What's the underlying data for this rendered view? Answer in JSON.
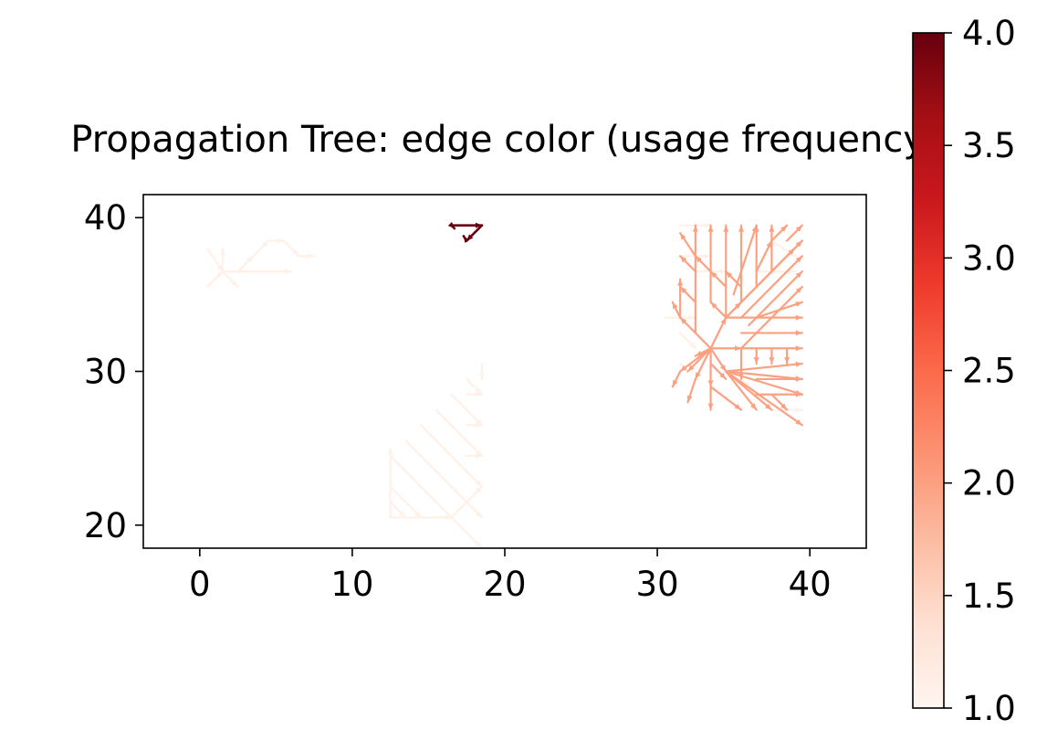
{
  "chart_data": {
    "type": "vector-field",
    "title": "Propagation Tree: edge color (usage frequency)",
    "xlabel": "",
    "ylabel": "",
    "xlim": [
      -3.7,
      43.7
    ],
    "ylim": [
      18.5,
      41.5
    ],
    "xticks": [
      0,
      10,
      20,
      30,
      40
    ],
    "yticks": [
      20,
      30,
      40
    ],
    "grid": false,
    "colorbar": {
      "colormap": "Reds",
      "range": [
        1.0,
        4.0
      ],
      "ticks": [
        "1.0",
        "1.5",
        "2.0",
        "2.5",
        "3.0",
        "3.5",
        "4.0"
      ],
      "stops": [
        "#fff5f0",
        "#fee0d2",
        "#fcbba1",
        "#fc9272",
        "#fb6a4a",
        "#ef3b2c",
        "#cb181d",
        "#a50f15",
        "#67000d"
      ]
    },
    "series": [
      {
        "frequency": 1,
        "color": "#fff0e8",
        "segments": [
          [
            0.5,
            38.0,
            1.5,
            36.5
          ],
          [
            0.5,
            35.5,
            1.5,
            36.5
          ],
          [
            1.5,
            36.5,
            2.5,
            35.5
          ],
          [
            1.5,
            36.5,
            3.0,
            36.5
          ],
          [
            3.0,
            36.5,
            6.0,
            36.5
          ],
          [
            2.5,
            36.5,
            3.5,
            37.5
          ],
          [
            3.5,
            37.5,
            4.5,
            38.5
          ],
          [
            4.5,
            38.5,
            5.5,
            38.5
          ],
          [
            5.5,
            38.5,
            6.5,
            37.5
          ],
          [
            6.5,
            37.5,
            7.5,
            37.5
          ],
          [
            1.5,
            36.5,
            1.5,
            38.0
          ],
          [
            12.5,
            20.5,
            16.5,
            20.5
          ],
          [
            12.5,
            20.5,
            12.5,
            25.0
          ],
          [
            16.5,
            20.5,
            18.5,
            22.5
          ],
          [
            12.5,
            22.5,
            14.5,
            20.5
          ],
          [
            12.5,
            24.5,
            18.5,
            18.5
          ],
          [
            13.5,
            25.5,
            18.5,
            20.5
          ],
          [
            14.5,
            26.5,
            18.5,
            22.5
          ],
          [
            15.5,
            27.5,
            18.5,
            24.5
          ],
          [
            16.5,
            28.5,
            18.5,
            26.5
          ],
          [
            17.5,
            29.5,
            18.5,
            28.5
          ],
          [
            12.5,
            21.5,
            13.5,
            20.5
          ],
          [
            17.5,
            26.5,
            18.5,
            26.5
          ],
          [
            17.5,
            24.5,
            18.5,
            24.5
          ],
          [
            17.5,
            28.5,
            18.5,
            28.5
          ],
          [
            18.5,
            30.5,
            18.5,
            29.5
          ],
          [
            31.5,
            39.5,
            33.5,
            39.5
          ],
          [
            31.5,
            37.5,
            33.5,
            37.5
          ],
          [
            32.5,
            36.5,
            34.5,
            36.5
          ],
          [
            30.5,
            33.5,
            32.5,
            33.5
          ],
          [
            36.5,
            36.5,
            39.0,
            36.5
          ],
          [
            37.5,
            38.5,
            39.0,
            37.5
          ],
          [
            36.5,
            28.5,
            37.5,
            27.5
          ],
          [
            37.5,
            27.5,
            39.5,
            27.5
          ],
          [
            35.5,
            29.5,
            36.5,
            28.5
          ],
          [
            31.5,
            32.5,
            32.5,
            31.5
          ],
          [
            31.5,
            30.5,
            32.0,
            30.0
          ]
        ]
      },
      {
        "frequency": 2,
        "color": "#fca082",
        "segments": [
          [
            33.5,
            31.5,
            31.5,
            33.5
          ],
          [
            33.5,
            31.5,
            32.5,
            31.0
          ],
          [
            33.5,
            31.5,
            32.0,
            30.0
          ],
          [
            33.5,
            31.5,
            32.5,
            29.5
          ],
          [
            33.5,
            31.5,
            31.5,
            30.0
          ],
          [
            33.5,
            31.5,
            33.5,
            29.0
          ],
          [
            33.5,
            31.5,
            34.5,
            33.5
          ],
          [
            33.5,
            31.5,
            35.5,
            31.5
          ],
          [
            33.5,
            31.5,
            34.5,
            30.0
          ],
          [
            31.5,
            33.5,
            31.0,
            34.5
          ],
          [
            31.5,
            33.5,
            31.5,
            36.0
          ],
          [
            32.5,
            32.5,
            32.5,
            39.5
          ],
          [
            32.5,
            34.5,
            31.5,
            35.5
          ],
          [
            32.5,
            36.5,
            31.5,
            37.5
          ],
          [
            32.5,
            37.5,
            31.5,
            39.0
          ],
          [
            34.5,
            33.5,
            33.5,
            34.5
          ],
          [
            34.5,
            33.5,
            34.5,
            39.5
          ],
          [
            33.5,
            34.5,
            33.5,
            39.5
          ],
          [
            33.5,
            36.5,
            32.5,
            37.5
          ],
          [
            34.5,
            35.5,
            33.5,
            36.5
          ],
          [
            34.5,
            33.5,
            39.5,
            38.5
          ],
          [
            35.0,
            34.0,
            39.0,
            38.0
          ],
          [
            35.5,
            33.5,
            39.5,
            37.5
          ],
          [
            36.0,
            33.0,
            39.5,
            36.5
          ],
          [
            34.5,
            33.5,
            35.5,
            34.5
          ],
          [
            35.5,
            34.5,
            35.5,
            39.5
          ],
          [
            35.0,
            35.0,
            36.5,
            39.5
          ],
          [
            35.5,
            35.5,
            34.5,
            36.5
          ],
          [
            36.5,
            35.5,
            36.5,
            39.5
          ],
          [
            36.5,
            36.5,
            37.5,
            38.5
          ],
          [
            37.5,
            36.5,
            37.5,
            39.5
          ],
          [
            37.5,
            38.5,
            38.5,
            39.5
          ],
          [
            38.5,
            37.5,
            39.5,
            38.5
          ],
          [
            38.5,
            38.5,
            39.5,
            39.5
          ],
          [
            34.5,
            33.5,
            39.5,
            33.5
          ],
          [
            35.5,
            32.5,
            39.5,
            32.5
          ],
          [
            35.5,
            31.5,
            39.5,
            31.5
          ],
          [
            35.5,
            31.5,
            39.5,
            35.5
          ],
          [
            36.5,
            33.5,
            39.5,
            34.5
          ],
          [
            34.5,
            30.0,
            39.5,
            30.5
          ],
          [
            34.5,
            30.0,
            39.5,
            29.5
          ],
          [
            34.5,
            30.0,
            39.5,
            28.5
          ],
          [
            34.5,
            30.0,
            39.5,
            26.5
          ],
          [
            34.5,
            30.0,
            37.5,
            27.5
          ],
          [
            34.5,
            30.0,
            36.5,
            27.5
          ],
          [
            33.5,
            29.0,
            33.5,
            27.5
          ],
          [
            33.5,
            29.0,
            35.5,
            27.5
          ],
          [
            32.5,
            29.5,
            32.0,
            28.0
          ],
          [
            31.5,
            30.0,
            31.0,
            29.0
          ],
          [
            35.5,
            31.5,
            35.5,
            29.5
          ],
          [
            36.5,
            31.5,
            36.5,
            30.5
          ],
          [
            37.5,
            31.5,
            37.5,
            30.5
          ],
          [
            38.5,
            31.5,
            38.5,
            30.5
          ],
          [
            36.5,
            29.5,
            39.5,
            29.5
          ],
          [
            36.5,
            28.5,
            39.5,
            28.5
          ],
          [
            37.5,
            28.5,
            38.5,
            27.5
          ],
          [
            33.5,
            30.5,
            34.5,
            29.5
          ]
        ]
      },
      {
        "frequency": 4,
        "color": "#67000d",
        "segments": [
          [
            16.5,
            39.5,
            18.5,
            39.5
          ],
          [
            18.5,
            39.5,
            17.5,
            38.5
          ],
          [
            17.5,
            38.5,
            17.3,
            38.8
          ],
          [
            16.5,
            39.5,
            16.7,
            39.3
          ]
        ]
      }
    ]
  }
}
